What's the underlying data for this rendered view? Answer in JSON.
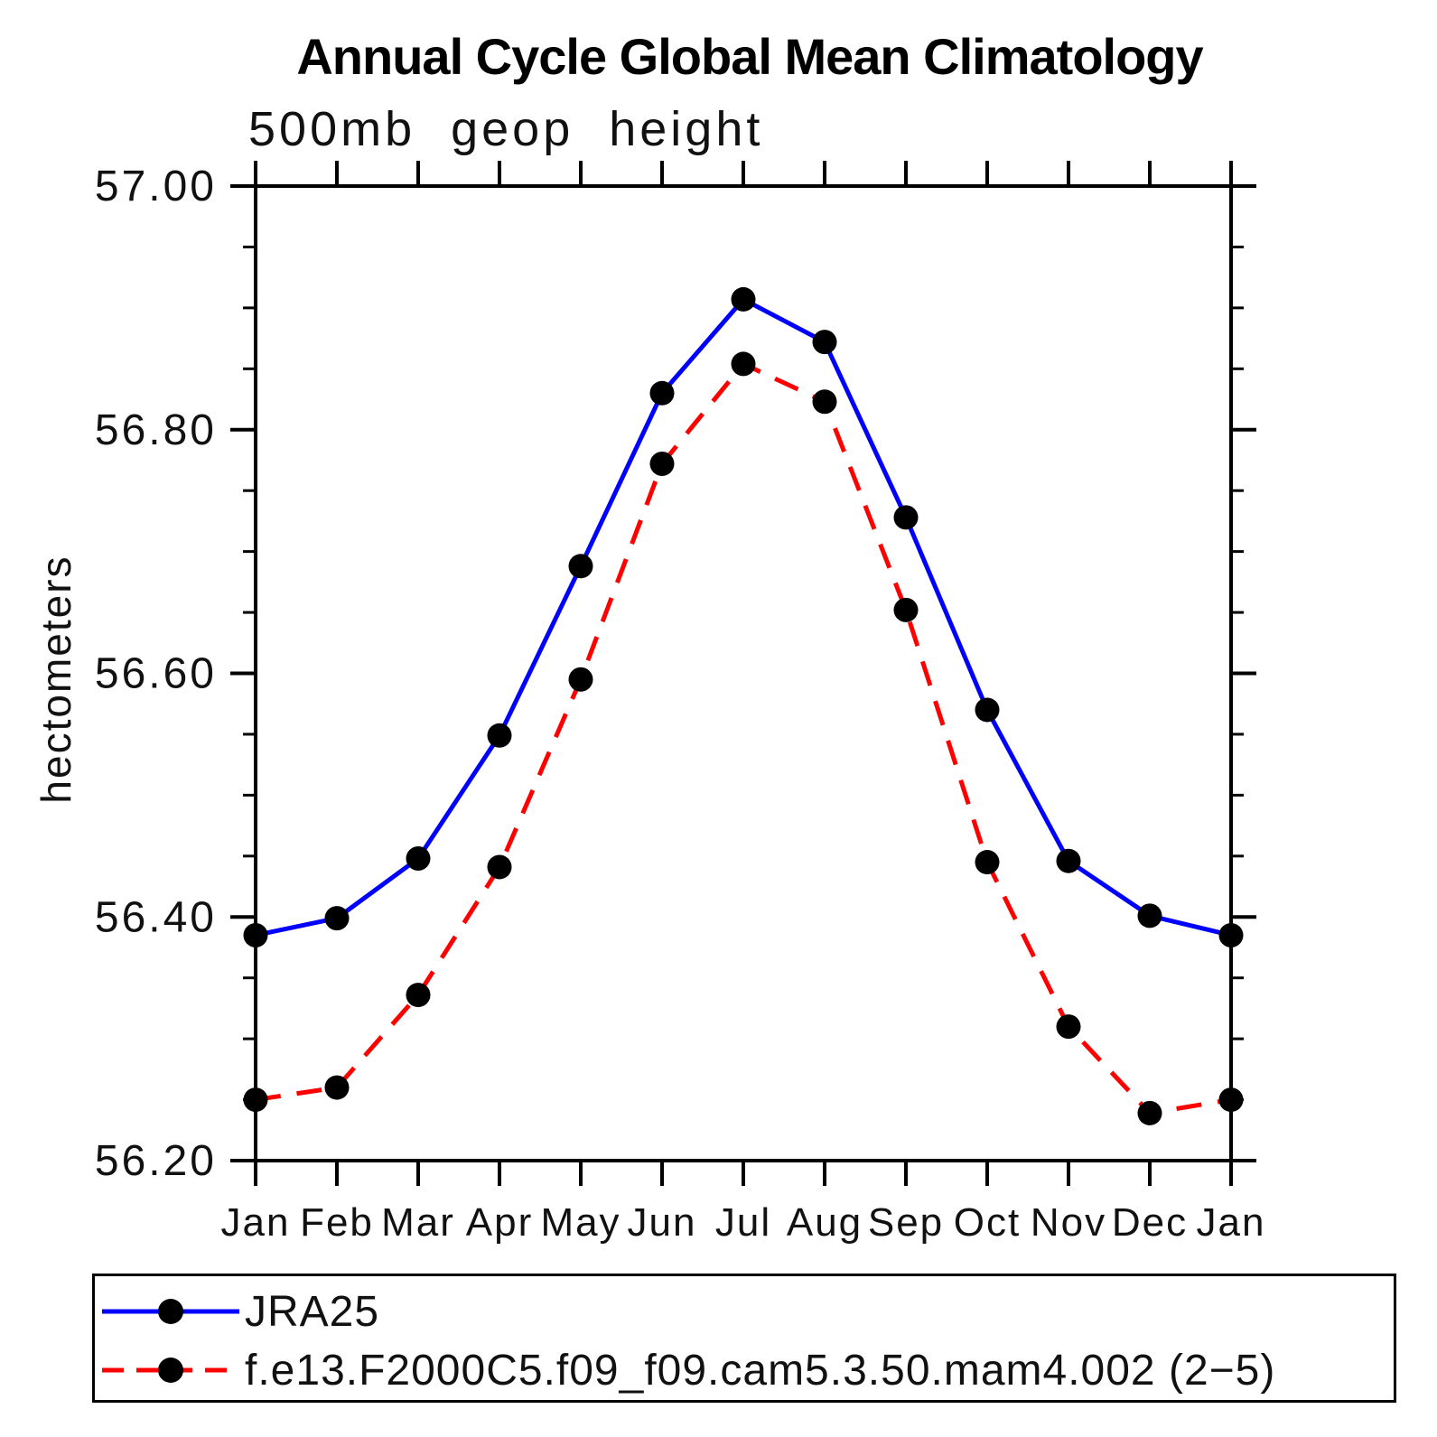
{
  "chart_data": {
    "type": "line",
    "title": "Annual Cycle Global Mean Climatology",
    "subtitle": "500mb geop height",
    "ylabel": "hectometers",
    "xlabel": "",
    "categories": [
      "Jan",
      "Feb",
      "Mar",
      "Apr",
      "May",
      "Jun",
      "Jul",
      "Aug",
      "Sep",
      "Oct",
      "Nov",
      "Dec",
      "Jan"
    ],
    "ylim": [
      56.2,
      57.0
    ],
    "y_major_tick_step": 0.2,
    "y_minor_tick_step": 0.05,
    "y_tick_labels": [
      "57.00",
      "56.80",
      "56.60",
      "56.40",
      "56.20"
    ],
    "grid": "off",
    "legend_position": "bottom-left-box",
    "axis_color": "#000000",
    "marker": "filled-circle",
    "marker_color": "#000000",
    "series": [
      {
        "name": "JRA25",
        "color": "#0000ff",
        "line_style": "solid",
        "values": [
          56.385,
          56.399,
          56.448,
          56.549,
          56.688,
          56.83,
          56.907,
          56.872,
          56.728,
          56.57,
          56.446,
          56.401,
          56.385
        ]
      },
      {
        "name": "f.e13.F2000C5.f09_f09.cam5.3.50.mam4.002 (2−5)",
        "color": "#ff0000",
        "line_style": "dashed",
        "values": [
          56.25,
          56.26,
          56.336,
          56.441,
          56.595,
          56.772,
          56.854,
          56.823,
          56.652,
          56.445,
          56.31,
          56.239,
          56.25
        ]
      }
    ]
  }
}
